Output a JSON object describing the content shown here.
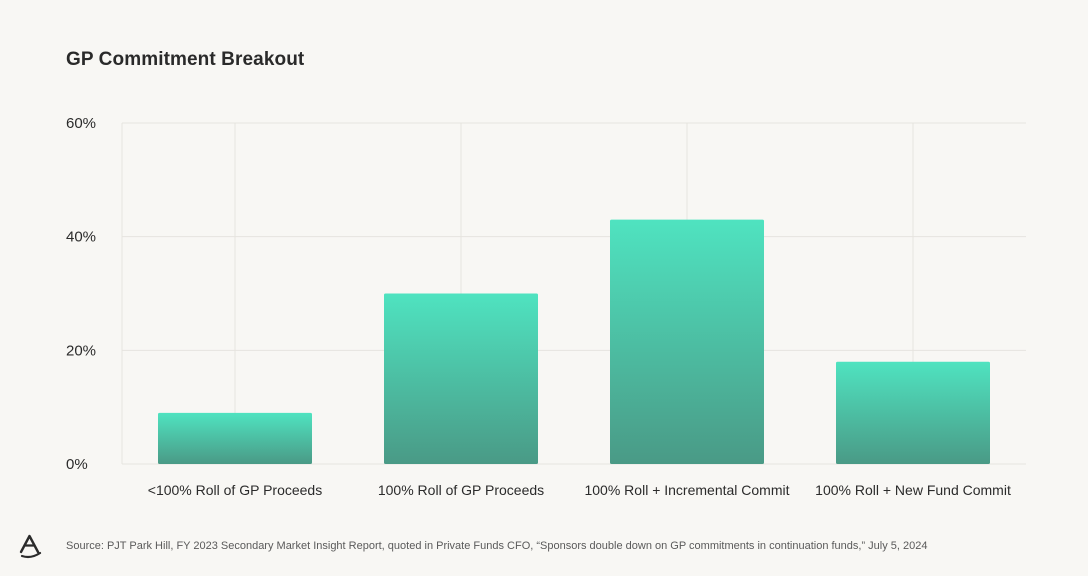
{
  "title": "GP Commitment Breakout",
  "source": "Source: PJT Park Hill, FY 2023 Secondary Market Insight Report, quoted in Private Funds CFO, “Sponsors double down on GP commitments in continuation funds,” July 5, 2024",
  "logo_icon": "a-logo-icon",
  "colors": {
    "background": "#f8f7f4",
    "bar_top": "#4fe3c0",
    "bar_bottom": "#4a9a86",
    "grid": "#e6e4df",
    "text": "#2b2b2b"
  },
  "chart_data": {
    "type": "bar",
    "title": "GP Commitment Breakout",
    "xlabel": "",
    "ylabel": "",
    "categories": [
      "<100% Roll of GP Proceeds",
      "100% Roll of GP Proceeds",
      "100% Roll + Incremental Commit",
      "100% Roll + New Fund Commit"
    ],
    "values": [
      9,
      30,
      43,
      18
    ],
    "ylim": [
      0,
      60
    ],
    "yticks": [
      0,
      20,
      40,
      60
    ],
    "ytick_labels": [
      "0%",
      "20%",
      "40%",
      "60%"
    ],
    "grid": true,
    "legend": "none"
  }
}
